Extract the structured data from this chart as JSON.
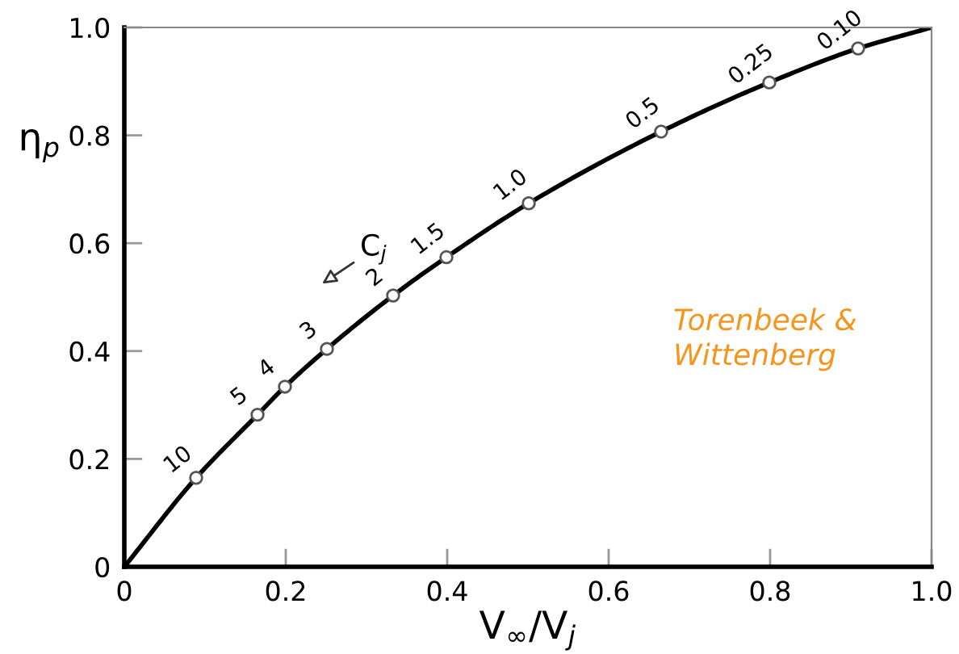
{
  "chart_data": {
    "type": "line",
    "xlabel": "V$_{∞}$/V$_{j}$",
    "ylabel": "η$_{p}$",
    "x": [
      0,
      0.089,
      0.165,
      0.199,
      0.251,
      0.333,
      0.399,
      0.501,
      0.665,
      0.799,
      0.909,
      1.0
    ],
    "series": [
      {
        "color": "#000000",
        "values": [
          0,
          0.165,
          0.282,
          0.334,
          0.404,
          0.503,
          0.574,
          0.674,
          0.807,
          0.898,
          0.961,
          1.0
        ]
      },
      {
        "type": "scatter",
        "color": "#ffffff",
        "marker": "circle",
        "x": [
          0.089,
          0.165,
          0.199,
          0.251,
          0.333,
          0.399,
          0.501,
          0.665,
          0.799,
          0.909
        ],
        "values": [
          0.165,
          0.282,
          0.334,
          0.404,
          0.503,
          0.574,
          0.674,
          0.807,
          0.898,
          0.961
        ]
      }
    ],
    "xlim": [
      0,
      1.0
    ],
    "ylim": [
      0,
      1.0
    ],
    "xticks": [
      0,
      0.2,
      0.4,
      0.6,
      0.8,
      {
        "value": 1.0,
        "label": "1.0"
      }
    ],
    "yticks": [
      0,
      0.2,
      0.4,
      0.6,
      0.8,
      {
        "value": 1.0,
        "label": "1.0"
      }
    ],
    "grid": false,
    "legend": false,
    "annotations": [
      {
        "text": "10",
        "x": 0.089,
        "y": 0.165
      },
      {
        "text": "5",
        "x": 0.165,
        "y": 0.282
      },
      {
        "text": "4",
        "x": 0.199,
        "y": 0.334
      },
      {
        "text": "3",
        "x": 0.251,
        "y": 0.404
      },
      {
        "text": "2",
        "x": 0.333,
        "y": 0.503
      },
      {
        "text": "1.5",
        "x": 0.399,
        "y": 0.574
      },
      {
        "text": "1.0",
        "x": 0.501,
        "y": 0.674
      },
      {
        "text": "0.5",
        "x": 0.665,
        "y": 0.807
      },
      {
        "text": "0.25",
        "x": 0.799,
        "y": 0.898
      },
      {
        "text": "0.10",
        "x": 0.909,
        "y": 0.961
      },
      "C$_{j}$",
      "Torenbeek &\nWittenberg"
    ]
  }
}
